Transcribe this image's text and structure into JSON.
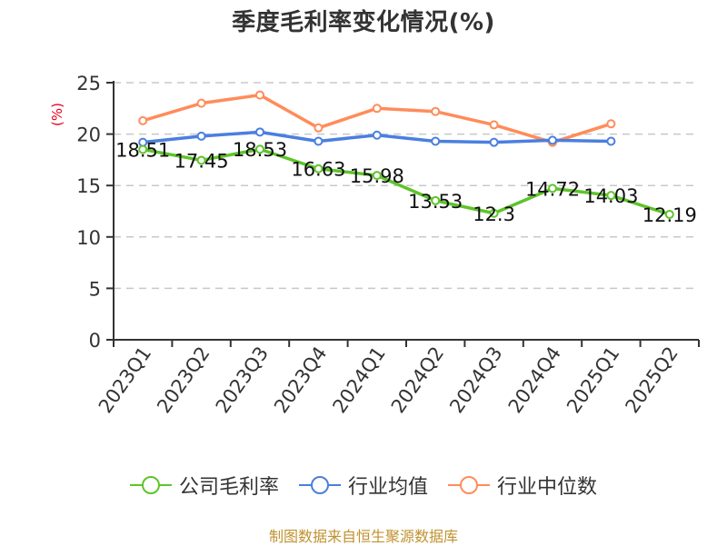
{
  "chart_data": {
    "type": "line",
    "title": "季度毛利率变化情况(%)",
    "xlabel": "",
    "ylabel": "(%)",
    "ylim": [
      0,
      25
    ],
    "yticks": [
      0,
      5,
      10,
      15,
      20,
      25
    ],
    "grid": true,
    "legend_position": "bottom",
    "categories": [
      "2023Q1",
      "2023Q2",
      "2023Q3",
      "2023Q4",
      "2024Q1",
      "2024Q2",
      "2024Q3",
      "2024Q4",
      "2025Q1",
      "2025Q2"
    ],
    "series": [
      {
        "name": "公司毛利率",
        "color": "#5ec42a",
        "values": [
          18.51,
          17.45,
          18.53,
          16.63,
          15.98,
          13.53,
          12.3,
          14.72,
          14.03,
          12.19
        ],
        "labels": [
          "18.51",
          "17.45",
          "18.53",
          "16.63",
          "15.98",
          "13.53",
          "12.3",
          "14.72",
          "14.03",
          "12.19"
        ]
      },
      {
        "name": "行业均值",
        "color": "#4a7fe0",
        "values": [
          19.2,
          19.8,
          20.2,
          19.3,
          19.9,
          19.3,
          19.2,
          19.4,
          19.3,
          null
        ]
      },
      {
        "name": "行业中位数",
        "color": "#ff8c5a",
        "values": [
          21.3,
          23.0,
          23.8,
          20.6,
          22.5,
          22.2,
          20.9,
          19.2,
          21.0,
          null
        ]
      }
    ]
  },
  "footer": {
    "source": "制图数据来自恒生聚源数据库"
  }
}
